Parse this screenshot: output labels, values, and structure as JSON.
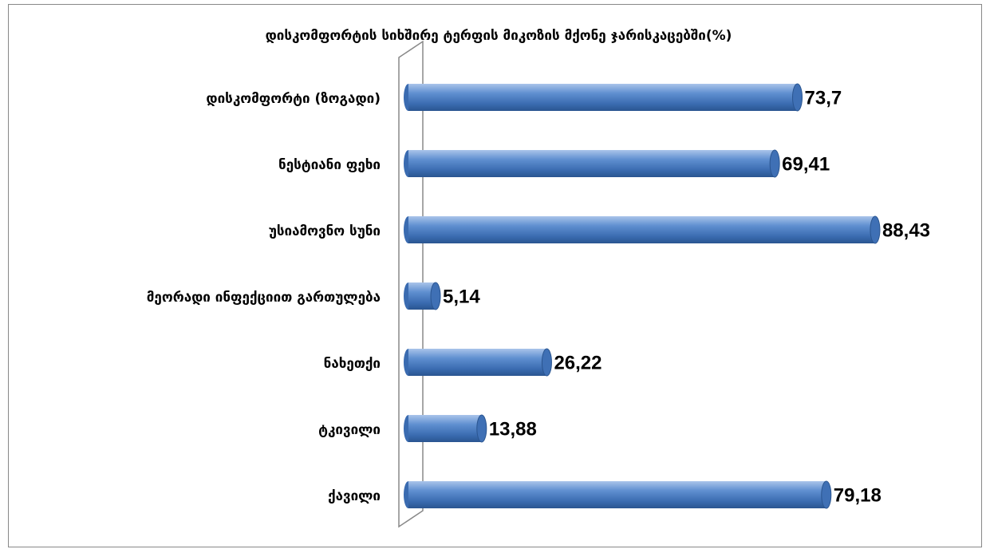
{
  "chart_data": {
    "type": "bar",
    "orientation": "horizontal",
    "title": "დისკომფორტის სიხშირე  ტერფის მიკოზის მქონე ჯარისკაცებში(%)",
    "categories": [
      "დისკომფორტი (ზოგადი)",
      "ნესტიანი ფეხი",
      "უსიამოვნო სუნი",
      "მეორადი ინფექციით გართულება",
      "ნახეთქი",
      "ტკივილი",
      "ქავილი"
    ],
    "values": [
      73.7,
      69.41,
      88.43,
      5.14,
      26.22,
      13.88,
      79.18
    ],
    "value_labels": [
      "73,7",
      "69,41",
      "88,43",
      "5,14",
      "26,22",
      "13,88",
      "79,18"
    ],
    "color": "#4f81bd"
  }
}
